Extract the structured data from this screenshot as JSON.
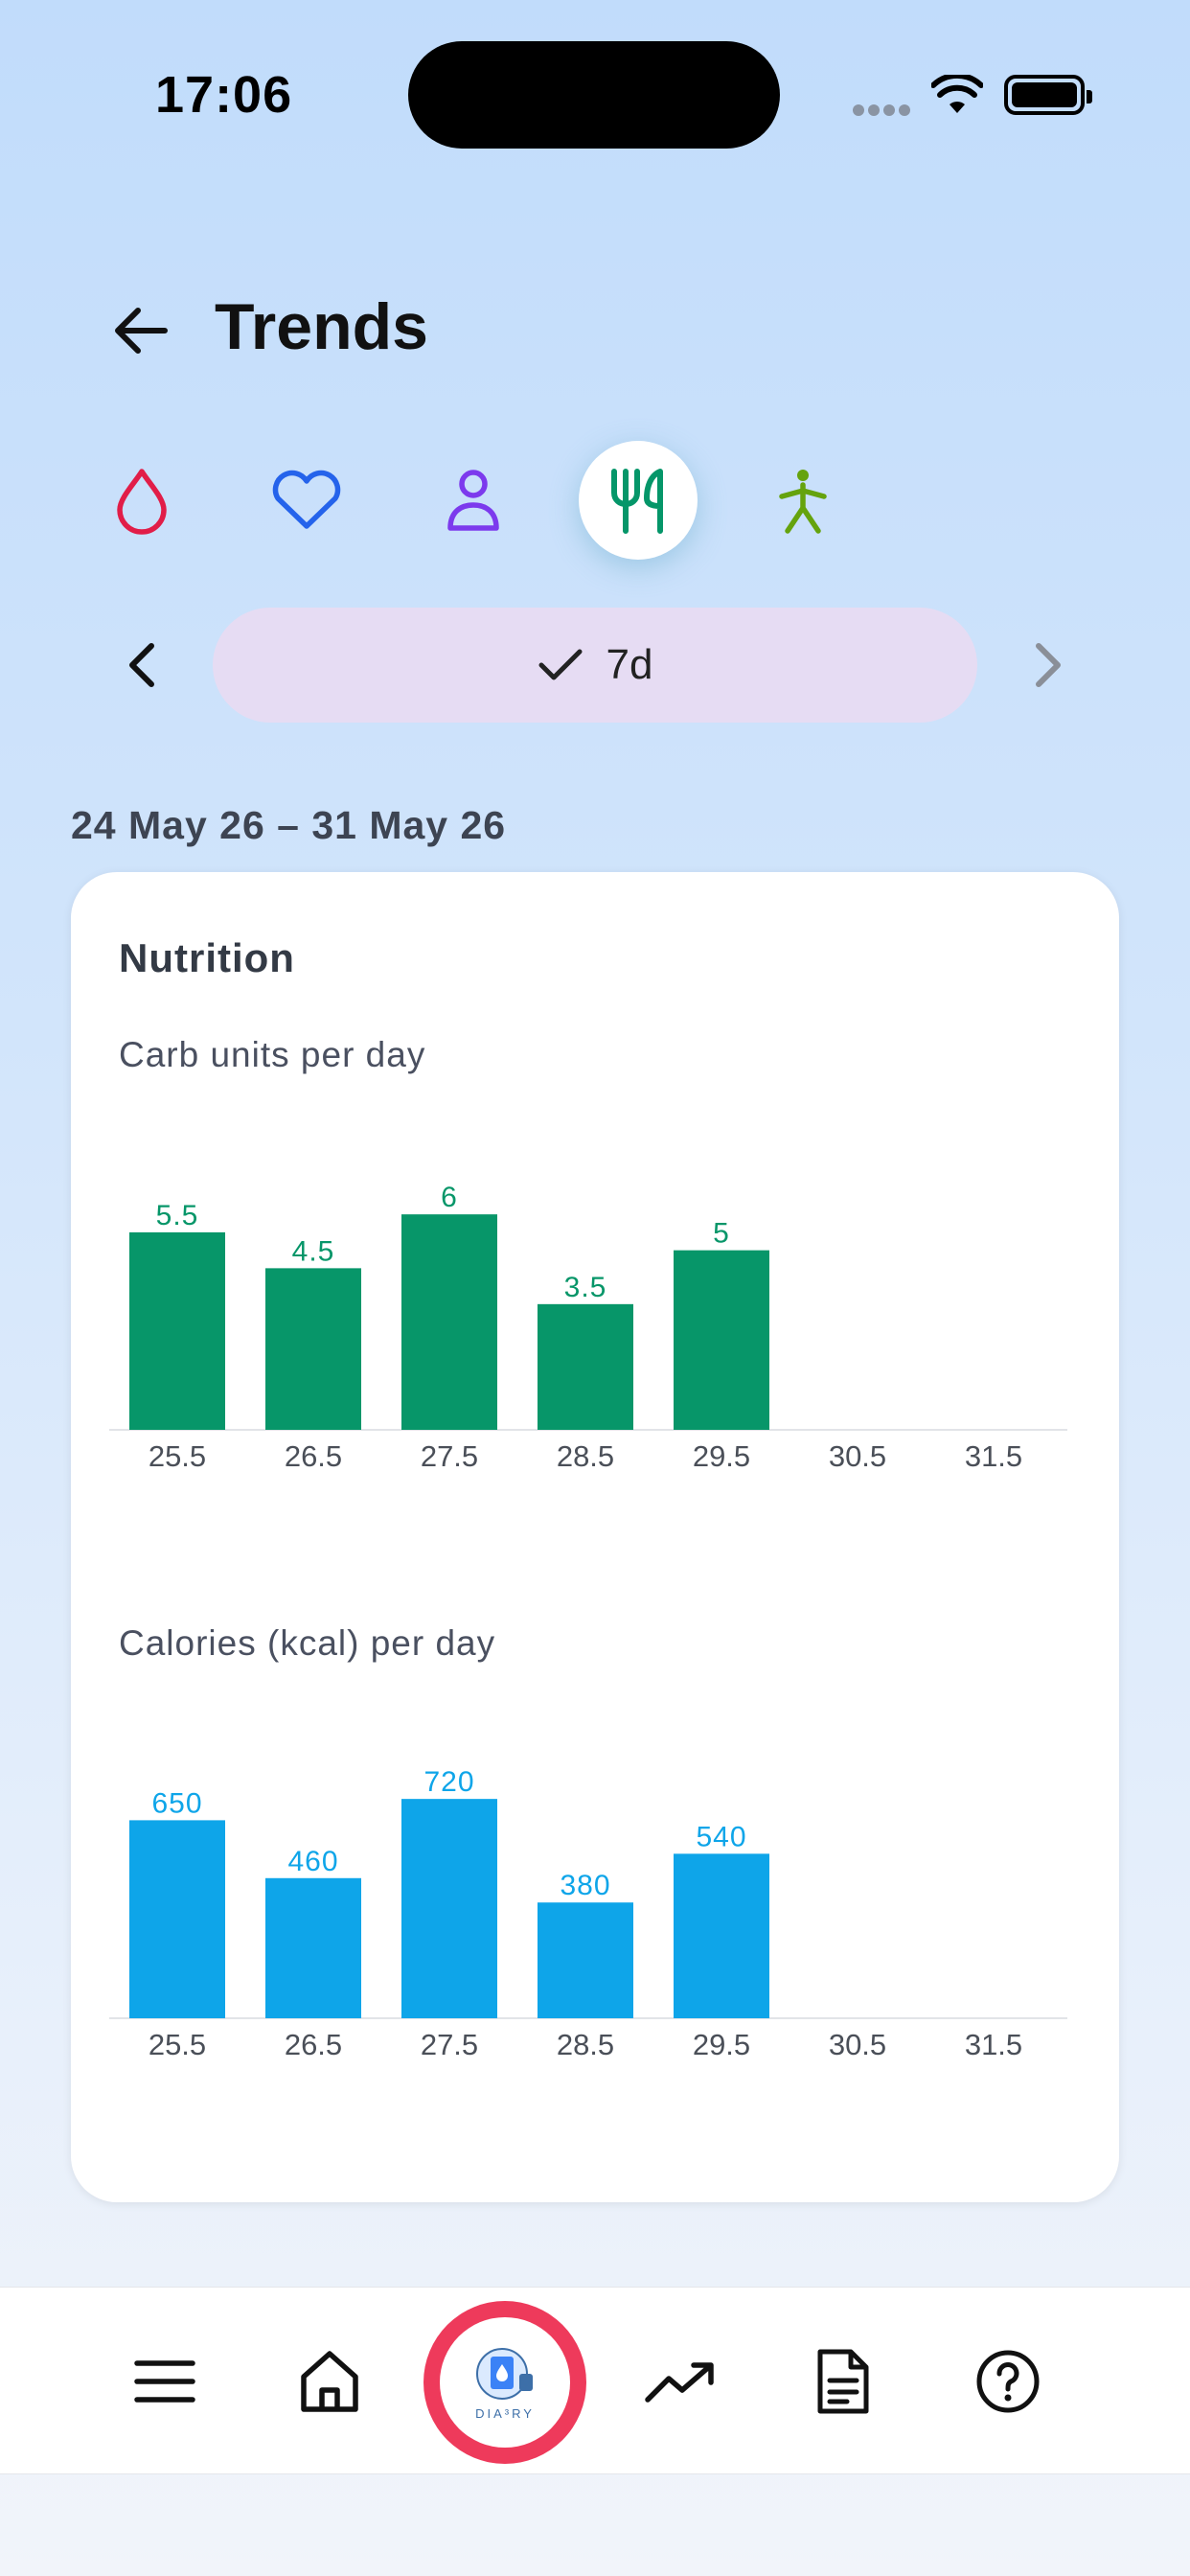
{
  "status_bar": {
    "time": "17:06"
  },
  "header": {
    "title": "Trends"
  },
  "categories": [
    {
      "name": "glucose",
      "icon": "drop-icon",
      "color": "#e11d48",
      "active": false
    },
    {
      "name": "heart",
      "icon": "heart-icon",
      "color": "#2563eb",
      "active": false
    },
    {
      "name": "weight",
      "icon": "person-icon",
      "color": "#7c3aed",
      "active": false
    },
    {
      "name": "nutrition",
      "icon": "fork-knife-icon",
      "color": "#059669",
      "active": true
    },
    {
      "name": "activity",
      "icon": "walking-icon",
      "color": "#65a30d",
      "active": false
    }
  ],
  "range": {
    "selected": "7d"
  },
  "date_range": "24 May 26 – 31 May 26",
  "card": {
    "title": "Nutrition",
    "carb_label": "Carb units per day",
    "cal_label": "Calories (kcal) per day"
  },
  "colors": {
    "carbs": "#079669",
    "calories": "#0ea5e9",
    "range_pill": "#e6dcf3",
    "center_ring": "#ee3a5b"
  },
  "chart_data": [
    {
      "type": "bar",
      "title": "Carb units per day",
      "categories": [
        "25.5",
        "26.5",
        "27.5",
        "28.5",
        "29.5",
        "30.5",
        "31.5"
      ],
      "values": [
        5.5,
        4.5,
        6,
        3.5,
        5,
        null,
        null
      ],
      "value_labels": [
        "5.5",
        "4.5",
        "6",
        "3.5",
        "5",
        "",
        ""
      ],
      "ylim": [
        0,
        9.5
      ],
      "color": "#079669"
    },
    {
      "type": "bar",
      "title": "Calories (kcal) per day",
      "categories": [
        "25.5",
        "26.5",
        "27.5",
        "28.5",
        "29.5",
        "30.5",
        "31.5"
      ],
      "values": [
        650,
        460,
        720,
        380,
        540,
        null,
        null
      ],
      "value_labels": [
        "650",
        "460",
        "720",
        "380",
        "540",
        "",
        ""
      ],
      "ylim": [
        0,
        1120
      ],
      "color": "#0ea5e9"
    }
  ],
  "bottom_nav": {
    "logo_text": "DIA³RY"
  }
}
